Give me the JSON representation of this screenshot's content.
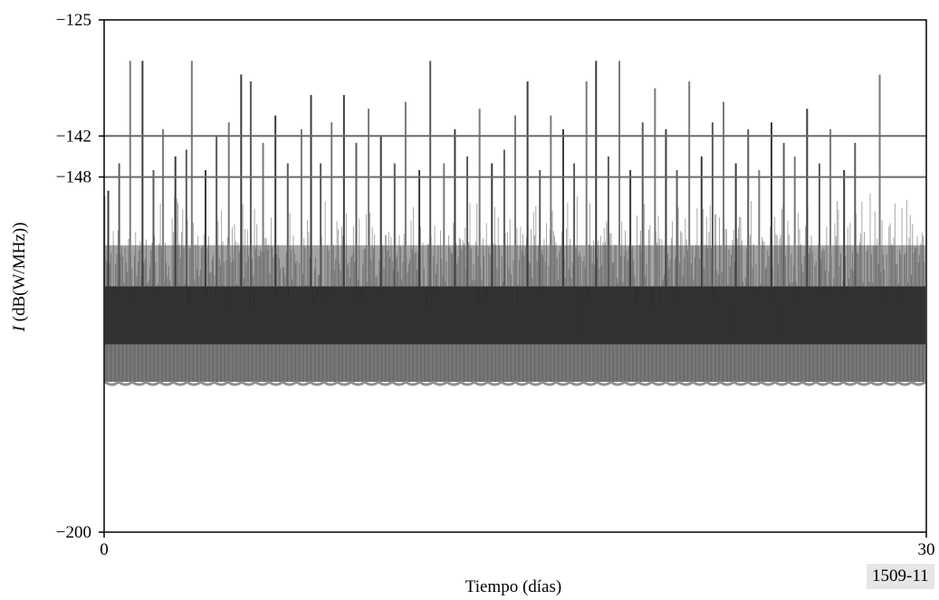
{
  "figure_id": "1509-11",
  "chart_data": {
    "type": "line",
    "title": "",
    "xlabel": "Tiempo (días)",
    "ylabel_italic": "I",
    "ylabel_rest": " (dB(W/MHz))",
    "xlim": [
      0,
      30
    ],
    "ylim": [
      -200,
      -125
    ],
    "x_ticks": [
      {
        "value": 0,
        "label": "0"
      },
      {
        "value": 30,
        "label": "30"
      }
    ],
    "y_ticks": [
      {
        "value": -125,
        "label": "−125"
      },
      {
        "value": -142,
        "label": "−142"
      },
      {
        "value": -148,
        "label": "−148"
      },
      {
        "value": -200,
        "label": "−200"
      }
    ],
    "reference_lines": [
      {
        "y": -142
      },
      {
        "y": -148
      }
    ],
    "grid": false,
    "series": [
      {
        "baseline_floor": -178,
        "dense_band": [
          -172.5,
          -164
        ],
        "peak_count": 66,
        "peaks": [
          {
            "x": 0.15,
            "y": -150
          },
          {
            "x": 0.55,
            "y": -146
          },
          {
            "x": 0.95,
            "y": -131
          },
          {
            "x": 1.4,
            "y": -131
          },
          {
            "x": 1.8,
            "y": -147
          },
          {
            "x": 2.15,
            "y": -141
          },
          {
            "x": 2.6,
            "y": -145
          },
          {
            "x": 3.0,
            "y": -144
          },
          {
            "x": 3.2,
            "y": -131
          },
          {
            "x": 3.7,
            "y": -147
          },
          {
            "x": 4.1,
            "y": -142
          },
          {
            "x": 4.55,
            "y": -140
          },
          {
            "x": 5.0,
            "y": -133
          },
          {
            "x": 5.35,
            "y": -134
          },
          {
            "x": 5.8,
            "y": -143
          },
          {
            "x": 6.25,
            "y": -139
          },
          {
            "x": 6.7,
            "y": -146
          },
          {
            "x": 7.2,
            "y": -141
          },
          {
            "x": 7.55,
            "y": -136
          },
          {
            "x": 7.9,
            "y": -146
          },
          {
            "x": 8.3,
            "y": -140
          },
          {
            "x": 8.75,
            "y": -136
          },
          {
            "x": 9.2,
            "y": -143
          },
          {
            "x": 9.65,
            "y": -138
          },
          {
            "x": 10.1,
            "y": -142
          },
          {
            "x": 10.6,
            "y": -146
          },
          {
            "x": 11.0,
            "y": -137
          },
          {
            "x": 11.5,
            "y": -147
          },
          {
            "x": 11.9,
            "y": -131
          },
          {
            "x": 12.4,
            "y": -146
          },
          {
            "x": 12.8,
            "y": -141
          },
          {
            "x": 13.25,
            "y": -145
          },
          {
            "x": 13.7,
            "y": -138
          },
          {
            "x": 14.15,
            "y": -146
          },
          {
            "x": 14.6,
            "y": -144
          },
          {
            "x": 15.0,
            "y": -139
          },
          {
            "x": 15.45,
            "y": -134
          },
          {
            "x": 15.9,
            "y": -147
          },
          {
            "x": 16.3,
            "y": -139
          },
          {
            "x": 16.75,
            "y": -141
          },
          {
            "x": 17.15,
            "y": -146
          },
          {
            "x": 17.6,
            "y": -134
          },
          {
            "x": 17.95,
            "y": -131
          },
          {
            "x": 18.4,
            "y": -145
          },
          {
            "x": 18.8,
            "y": -131
          },
          {
            "x": 19.2,
            "y": -147
          },
          {
            "x": 19.65,
            "y": -140
          },
          {
            "x": 20.1,
            "y": -135
          },
          {
            "x": 20.5,
            "y": -141
          },
          {
            "x": 20.9,
            "y": -147
          },
          {
            "x": 21.35,
            "y": -134
          },
          {
            "x": 21.8,
            "y": -145
          },
          {
            "x": 22.2,
            "y": -140
          },
          {
            "x": 22.6,
            "y": -137
          },
          {
            "x": 23.05,
            "y": -146
          },
          {
            "x": 23.5,
            "y": -141
          },
          {
            "x": 23.9,
            "y": -147
          },
          {
            "x": 24.35,
            "y": -140
          },
          {
            "x": 24.8,
            "y": -143
          },
          {
            "x": 25.2,
            "y": -145
          },
          {
            "x": 25.65,
            "y": -138
          },
          {
            "x": 26.1,
            "y": -146
          },
          {
            "x": 26.5,
            "y": -141
          },
          {
            "x": 27.0,
            "y": -147
          },
          {
            "x": 27.4,
            "y": -143
          },
          {
            "x": 28.3,
            "y": -133
          }
        ]
      }
    ]
  }
}
